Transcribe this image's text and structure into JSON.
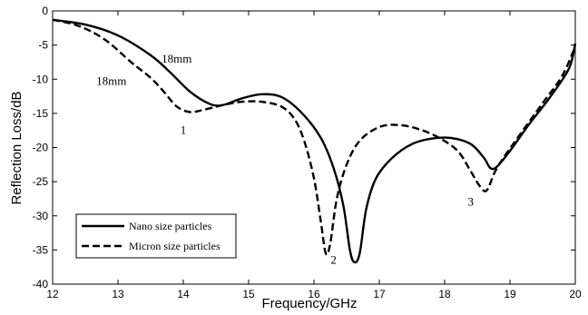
{
  "chart_data": {
    "type": "line",
    "title": "",
    "xlabel": "Frequency/GHz",
    "ylabel": "Reflection Loss/dB",
    "xlim": [
      12,
      20
    ],
    "ylim": [
      -40,
      0
    ],
    "xticks": [
      "12",
      "13",
      "14",
      "15",
      "16",
      "17",
      "18",
      "19",
      "20"
    ],
    "yticks": [
      "0",
      "-5",
      "-10",
      "-15",
      "-20",
      "-25",
      "-30",
      "-35",
      "-40"
    ],
    "grid": false,
    "legend_position": "bottom-left",
    "series": [
      {
        "name": "Nano size particles",
        "style": "solid",
        "points": [
          [
            12,
            -1.3
          ],
          [
            12.5,
            -2.0
          ],
          [
            13,
            -3.6
          ],
          [
            13.5,
            -6.5
          ],
          [
            13.8,
            -9.0
          ],
          [
            14.1,
            -11.8
          ],
          [
            14.4,
            -13.6
          ],
          [
            14.6,
            -13.8
          ],
          [
            14.9,
            -12.8
          ],
          [
            15.2,
            -12.2
          ],
          [
            15.5,
            -12.6
          ],
          [
            15.8,
            -14.8
          ],
          [
            16.1,
            -18.5
          ],
          [
            16.3,
            -23.0
          ],
          [
            16.45,
            -28.5
          ],
          [
            16.55,
            -35.0
          ],
          [
            16.62,
            -36.8
          ],
          [
            16.7,
            -35.5
          ],
          [
            16.8,
            -29.0
          ],
          [
            16.95,
            -24.5
          ],
          [
            17.2,
            -21.5
          ],
          [
            17.5,
            -19.5
          ],
          [
            17.8,
            -18.7
          ],
          [
            18.1,
            -18.6
          ],
          [
            18.4,
            -19.5
          ],
          [
            18.6,
            -21.5
          ],
          [
            18.7,
            -23.0
          ],
          [
            18.8,
            -22.8
          ],
          [
            19.0,
            -20.5
          ],
          [
            19.3,
            -16.5
          ],
          [
            19.6,
            -12.8
          ],
          [
            19.9,
            -8.5
          ],
          [
            20,
            -4.8
          ]
        ]
      },
      {
        "name": "Micron size particles",
        "style": "dashed",
        "points": [
          [
            12,
            -1.3
          ],
          [
            12.4,
            -2.2
          ],
          [
            12.8,
            -4.2
          ],
          [
            13.2,
            -7.5
          ],
          [
            13.5,
            -9.8
          ],
          [
            13.7,
            -11.8
          ],
          [
            13.9,
            -14.0
          ],
          [
            14.1,
            -14.8
          ],
          [
            14.3,
            -14.5
          ],
          [
            14.6,
            -13.8
          ],
          [
            14.9,
            -13.3
          ],
          [
            15.2,
            -13.3
          ],
          [
            15.5,
            -14.0
          ],
          [
            15.7,
            -15.8
          ],
          [
            15.85,
            -19.0
          ],
          [
            16.0,
            -24.5
          ],
          [
            16.1,
            -30.5
          ],
          [
            16.18,
            -35.5
          ],
          [
            16.25,
            -34.0
          ],
          [
            16.35,
            -27.5
          ],
          [
            16.5,
            -22.5
          ],
          [
            16.7,
            -19.0
          ],
          [
            17.0,
            -17.0
          ],
          [
            17.3,
            -16.7
          ],
          [
            17.6,
            -17.3
          ],
          [
            17.9,
            -18.5
          ],
          [
            18.2,
            -20.5
          ],
          [
            18.4,
            -23.5
          ],
          [
            18.55,
            -25.8
          ],
          [
            18.65,
            -26.2
          ],
          [
            18.8,
            -23.0
          ],
          [
            19.1,
            -18.8
          ],
          [
            19.5,
            -13.5
          ],
          [
            19.8,
            -9.5
          ],
          [
            20,
            -5.2
          ]
        ]
      }
    ],
    "annotations": [
      {
        "text": "18mm",
        "x": 13.9,
        "y": -7.6
      },
      {
        "text": "18mm",
        "x": 12.9,
        "y": -10.8
      },
      {
        "text": "1",
        "x": 14.0,
        "y": -18.0
      },
      {
        "text": "2",
        "x": 16.3,
        "y": -37.0
      },
      {
        "text": "3",
        "x": 18.4,
        "y": -28.5
      }
    ]
  }
}
